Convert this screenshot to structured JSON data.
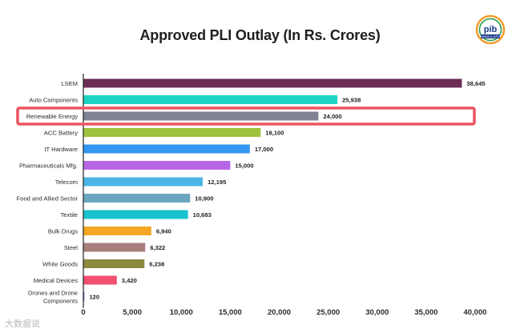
{
  "chart_data": {
    "type": "bar",
    "orientation": "horizontal",
    "title": "Approved PLI Outlay (In Rs. Crores)",
    "xlabel": "",
    "ylabel": "",
    "xlim": [
      0,
      40000
    ],
    "x_ticks": [
      0,
      5000,
      10000,
      15000,
      20000,
      25000,
      30000,
      35000,
      40000
    ],
    "x_tick_labels": [
      "0",
      "5,000",
      "10,000",
      "15,000",
      "20,000",
      "25,000",
      "30,000",
      "35,000",
      "40,000"
    ],
    "grid": false,
    "categories": [
      "LSEM",
      "Auto Components",
      "Renewable Energy",
      "ACC Battery",
      "IT Hardware",
      "Pharmaceuticals Mfg.",
      "Telecom",
      "Food and Allied Sector",
      "Textile",
      "Bulk Drugs",
      "Steel",
      "White Goods",
      "Medical Devices",
      "Drones and Drone Components"
    ],
    "values": [
      38645,
      25938,
      24000,
      18100,
      17000,
      15000,
      12195,
      10900,
      10683,
      6940,
      6322,
      6238,
      3420,
      120
    ],
    "value_labels": [
      "38,645",
      "25,938",
      "24,000",
      "18,100",
      "17,000",
      "15,000",
      "12,195",
      "10,900",
      "10,683",
      "6,940",
      "6,322",
      "6,238",
      "3,420",
      "120"
    ],
    "colors": [
      "#6b2d55",
      "#1fd3c4",
      "#7f8394",
      "#9ec23c",
      "#3396f0",
      "#b767e6",
      "#4bb6e6",
      "#6ba6c0",
      "#19c1cc",
      "#f5a623",
      "#a87f7c",
      "#8b8a3c",
      "#f1506e",
      "#a67bc8"
    ],
    "highlight": {
      "category": "Renewable Energy",
      "color": "#ec5461"
    }
  },
  "logo": {
    "text": "pib",
    "subtext": "NEWS & INFO"
  },
  "watermark": "大数据说"
}
